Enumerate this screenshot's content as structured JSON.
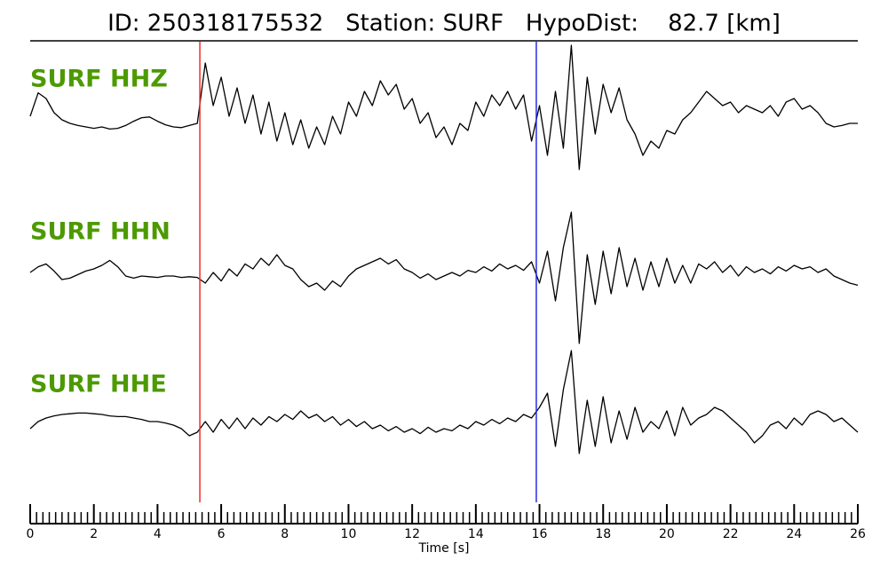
{
  "chart_data": {
    "type": "seismogram",
    "title": "ID: 250318175532   Station: SURF   HypoDist:    82.7 [km]",
    "xlabel": "Time [s]",
    "xlim": [
      0,
      26
    ],
    "xticks": [
      0,
      2,
      4,
      6,
      8,
      10,
      12,
      14,
      16,
      18,
      20,
      22,
      24,
      26
    ],
    "xminorticks": [
      0,
      0.2,
      0.4,
      0.6,
      0.8,
      1,
      1.2,
      1.4,
      1.6,
      1.8,
      2,
      2.2,
      2.4,
      2.6,
      2.8,
      3,
      3.2,
      3.4,
      3.6,
      3.8,
      4,
      4.2,
      4.4,
      4.6,
      4.8,
      5,
      5.2,
      5.4,
      5.6,
      5.8,
      6,
      6.2,
      6.4,
      6.6,
      6.8,
      7,
      7.2,
      7.4,
      7.6,
      7.8,
      8,
      8.2,
      8.4,
      8.6,
      8.8,
      9,
      9.2,
      9.4,
      9.6,
      9.8,
      10,
      10.2,
      10.4,
      10.6,
      10.8,
      11,
      11.2,
      11.4,
      11.6,
      11.8,
      12,
      12.2,
      12.4,
      12.6,
      12.8,
      13,
      13.2,
      13.4,
      13.6,
      13.8,
      14,
      14.2,
      14.4,
      14.6,
      14.8,
      15,
      15.2,
      15.4,
      15.6,
      15.8,
      16,
      16.2,
      16.4,
      16.6,
      16.8,
      17,
      17.2,
      17.4,
      17.6,
      17.8,
      18,
      18.2,
      18.4,
      18.6,
      18.8,
      19,
      19.2,
      19.4,
      19.6,
      19.8,
      20,
      20.2,
      20.4,
      20.6,
      20.8,
      21,
      21.2,
      21.4,
      21.6,
      21.8,
      22,
      22.2,
      22.4,
      22.6,
      22.8,
      23,
      23.2,
      23.4,
      23.6,
      23.8,
      24,
      24.2,
      24.4,
      24.6,
      24.8,
      25,
      25.2,
      25.4,
      25.6,
      25.8,
      26
    ],
    "ylim": [
      -1.1,
      1.1
    ],
    "label_color": "#4c9a00",
    "markers": [
      {
        "x": 5.33,
        "color": "#e8302a"
      },
      {
        "x": 15.9,
        "color": "#2a2ae8"
      }
    ],
    "x": [
      0,
      0.25,
      0.5,
      0.75,
      1,
      1.25,
      1.5,
      1.75,
      2,
      2.25,
      2.5,
      2.75,
      3,
      3.25,
      3.5,
      3.75,
      4,
      4.25,
      4.5,
      4.75,
      5,
      5.25,
      5.5,
      5.75,
      6,
      6.25,
      6.5,
      6.75,
      7,
      7.25,
      7.5,
      7.75,
      8,
      8.25,
      8.5,
      8.75,
      9,
      9.25,
      9.5,
      9.75,
      10,
      10.25,
      10.5,
      10.75,
      11,
      11.25,
      11.5,
      11.75,
      12,
      12.25,
      12.5,
      12.75,
      13,
      13.25,
      13.5,
      13.75,
      14,
      14.25,
      14.5,
      14.75,
      15,
      15.25,
      15.5,
      15.75,
      16,
      16.25,
      16.5,
      16.75,
      17,
      17.25,
      17.5,
      17.75,
      18,
      18.25,
      18.5,
      18.75,
      19,
      19.25,
      19.5,
      19.75,
      20,
      20.25,
      20.5,
      20.75,
      21,
      21.25,
      21.5,
      21.75,
      22,
      22.25,
      22.5,
      22.75,
      23,
      23.25,
      23.5,
      23.75,
      24,
      24.25,
      24.5,
      24.75,
      25,
      25.25,
      25.5,
      25.75,
      26
    ],
    "series": [
      {
        "name": "SURF HHZ",
        "color": "#000000",
        "values": [
          0.05,
          0.38,
          0.3,
          0.1,
          0.0,
          -0.05,
          -0.08,
          -0.1,
          -0.12,
          -0.1,
          -0.13,
          -0.12,
          -0.08,
          -0.02,
          0.03,
          0.04,
          -0.02,
          -0.07,
          -0.1,
          -0.11,
          -0.08,
          -0.05,
          0.8,
          0.2,
          0.6,
          0.05,
          0.45,
          -0.05,
          0.35,
          -0.2,
          0.25,
          -0.3,
          0.1,
          -0.35,
          0.0,
          -0.4,
          -0.1,
          -0.35,
          0.05,
          -0.2,
          0.25,
          0.05,
          0.4,
          0.2,
          0.55,
          0.35,
          0.5,
          0.15,
          0.3,
          -0.05,
          0.1,
          -0.25,
          -0.1,
          -0.35,
          -0.05,
          -0.15,
          0.25,
          0.05,
          0.35,
          0.2,
          0.4,
          0.15,
          0.35,
          -0.3,
          0.2,
          -0.5,
          0.4,
          -0.4,
          1.05,
          -0.7,
          0.6,
          -0.2,
          0.5,
          0.1,
          0.45,
          0.0,
          -0.2,
          -0.5,
          -0.3,
          -0.4,
          -0.15,
          -0.2,
          0.0,
          0.1,
          0.25,
          0.4,
          0.3,
          0.2,
          0.25,
          0.1,
          0.2,
          0.15,
          0.1,
          0.2,
          0.05,
          0.25,
          0.3,
          0.15,
          0.2,
          0.1,
          -0.05,
          -0.1,
          -0.08,
          -0.05,
          -0.05
        ]
      },
      {
        "name": "SURF HHN",
        "color": "#000000",
        "values": [
          0.0,
          0.08,
          0.12,
          0.02,
          -0.1,
          -0.08,
          -0.03,
          0.02,
          0.05,
          0.1,
          0.17,
          0.08,
          -0.05,
          -0.08,
          -0.05,
          -0.06,
          -0.07,
          -0.05,
          -0.05,
          -0.07,
          -0.06,
          -0.07,
          -0.15,
          0.0,
          -0.12,
          0.05,
          -0.05,
          0.12,
          0.05,
          0.2,
          0.1,
          0.25,
          0.1,
          0.05,
          -0.1,
          -0.2,
          -0.15,
          -0.25,
          -0.12,
          -0.2,
          -0.05,
          0.05,
          0.1,
          0.15,
          0.2,
          0.12,
          0.18,
          0.05,
          0.0,
          -0.08,
          -0.02,
          -0.1,
          -0.05,
          0.0,
          -0.05,
          0.03,
          0.0,
          0.08,
          0.02,
          0.12,
          0.05,
          0.1,
          0.03,
          0.15,
          -0.15,
          0.3,
          -0.4,
          0.35,
          0.85,
          -1.0,
          0.25,
          -0.45,
          0.3,
          -0.3,
          0.35,
          -0.2,
          0.2,
          -0.25,
          0.15,
          -0.2,
          0.2,
          -0.15,
          0.1,
          -0.15,
          0.12,
          0.05,
          0.15,
          0.0,
          0.1,
          -0.05,
          0.08,
          0.0,
          0.05,
          -0.02,
          0.08,
          0.02,
          0.1,
          0.05,
          0.08,
          0.0,
          0.05,
          -0.05,
          -0.1,
          -0.15,
          -0.18
        ]
      },
      {
        "name": "SURF HHE",
        "color": "#000000",
        "values": [
          -0.05,
          0.05,
          0.1,
          0.13,
          0.15,
          0.16,
          0.17,
          0.17,
          0.16,
          0.15,
          0.13,
          0.12,
          0.12,
          0.1,
          0.08,
          0.05,
          0.05,
          0.03,
          0.0,
          -0.05,
          -0.15,
          -0.1,
          0.05,
          -0.1,
          0.08,
          -0.05,
          0.1,
          -0.05,
          0.1,
          0.0,
          0.12,
          0.05,
          0.15,
          0.08,
          0.2,
          0.1,
          0.15,
          0.05,
          0.12,
          0.0,
          0.08,
          -0.02,
          0.05,
          -0.05,
          0.0,
          -0.08,
          -0.02,
          -0.1,
          -0.05,
          -0.12,
          -0.03,
          -0.1,
          -0.05,
          -0.08,
          0.0,
          -0.05,
          0.05,
          0.0,
          0.08,
          0.02,
          0.1,
          0.05,
          0.15,
          0.1,
          0.25,
          0.45,
          -0.3,
          0.5,
          1.05,
          -0.4,
          0.35,
          -0.3,
          0.4,
          -0.25,
          0.2,
          -0.2,
          0.25,
          -0.1,
          0.05,
          -0.05,
          0.2,
          -0.15,
          0.25,
          0.0,
          0.1,
          0.15,
          0.25,
          0.2,
          0.1,
          0.0,
          -0.1,
          -0.25,
          -0.15,
          0.0,
          0.05,
          -0.05,
          0.1,
          0.0,
          0.15,
          0.2,
          0.15,
          0.05,
          0.1,
          0.0,
          -0.1
        ]
      }
    ]
  }
}
